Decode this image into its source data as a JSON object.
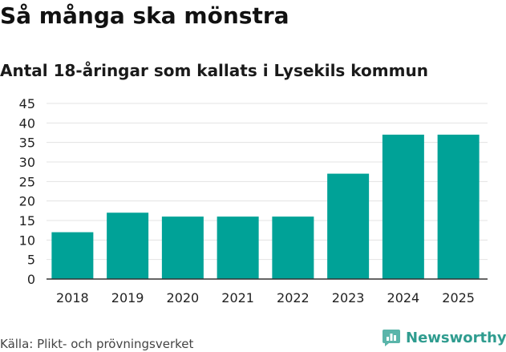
{
  "header": {
    "title": "Så många ska mönstra",
    "subtitle": "Antal 18-åringar som kallats i Lysekils kommun"
  },
  "footer": {
    "source": "Källa: Plikt- och prövningsverket",
    "brand": "Newsworthy",
    "brand_icon": "newsworthy-logo-icon"
  },
  "colors": {
    "bar": "#00a297",
    "grid": "#e3e3e3",
    "axis": "#333333",
    "brand": "#2f9c8f"
  },
  "chart_data": {
    "type": "bar",
    "title": "Så många ska mönstra",
    "subtitle": "Antal 18-åringar som kallats i Lysekils kommun",
    "categories": [
      "2018",
      "2019",
      "2020",
      "2021",
      "2022",
      "2023",
      "2024",
      "2025"
    ],
    "values": [
      12,
      17,
      16,
      16,
      16,
      27,
      37,
      37
    ],
    "xlabel": "",
    "ylabel": "",
    "ylim": [
      0,
      45
    ],
    "yticks": [
      0,
      5,
      10,
      15,
      20,
      25,
      30,
      35,
      40,
      45
    ],
    "grid": true,
    "legend": "none"
  }
}
